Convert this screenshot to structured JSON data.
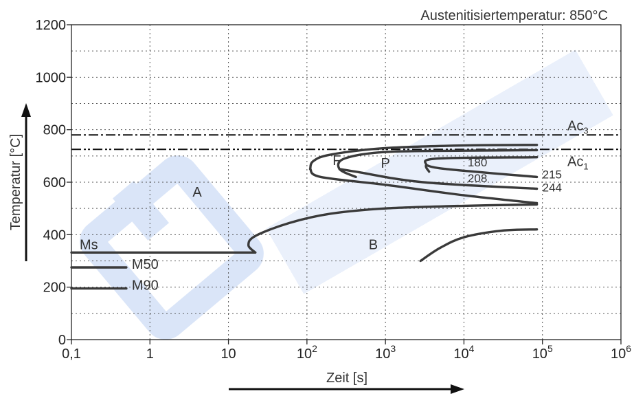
{
  "chart_data": {
    "type": "line",
    "title": "Austenitisiertemperatur: 850°C",
    "xlabel": "Zeit [s]",
    "ylabel": "Temperatur [°C]",
    "xscale": "log",
    "xlim": [
      0.1,
      1000000
    ],
    "ylim": [
      0,
      1200
    ],
    "grid": true,
    "x_ticks": [
      {
        "value": 0.1,
        "label": "0,1"
      },
      {
        "value": 1,
        "label": "1"
      },
      {
        "value": 10,
        "label": "10"
      },
      {
        "value": 100,
        "label": "10",
        "exp": "2"
      },
      {
        "value": 1000,
        "label": "10",
        "exp": "3"
      },
      {
        "value": 10000,
        "label": "10",
        "exp": "4"
      },
      {
        "value": 100000,
        "label": "10",
        "exp": "5"
      },
      {
        "value": 1000000,
        "label": "10",
        "exp": "6"
      }
    ],
    "y_ticks": [
      {
        "value": 0,
        "label": "0"
      },
      {
        "value": 200,
        "label": "200"
      },
      {
        "value": 400,
        "label": "400"
      },
      {
        "value": 600,
        "label": "600"
      },
      {
        "value": 800,
        "label": "800"
      },
      {
        "value": 1000,
        "label": "1000"
      },
      {
        "value": 1200,
        "label": "1200"
      }
    ],
    "reference_lines": [
      {
        "name": "Ac",
        "sub": "3",
        "y": 780,
        "style": "dash-dot"
      },
      {
        "name": "Ac",
        "sub": "1",
        "y": 725,
        "style": "dash-dot-dot"
      }
    ],
    "series": [
      {
        "name": "Ms",
        "points": [
          [
            0.1,
            332
          ],
          [
            22,
            332
          ]
        ]
      },
      {
        "name": "M50",
        "points": [
          [
            0.1,
            275
          ],
          [
            0.5,
            275
          ]
        ]
      },
      {
        "name": "M90",
        "points": [
          [
            0.1,
            195
          ],
          [
            0.5,
            195
          ]
        ]
      },
      {
        "name": "",
        "points": [
          [
            22,
            332
          ],
          [
            18,
            360
          ],
          [
            22,
            395
          ],
          [
            60,
            445
          ],
          [
            200,
            480
          ],
          [
            1000,
            500
          ],
          [
            10000,
            510
          ],
          [
            85000,
            515
          ]
        ]
      },
      {
        "name": "",
        "points": [
          [
            110,
            650
          ],
          [
            120,
            680
          ],
          [
            200,
            705
          ],
          [
            1000,
            730
          ],
          [
            10000,
            740
          ],
          [
            85000,
            742
          ]
        ]
      },
      {
        "name": "",
        "points": [
          [
            110,
            650
          ],
          [
            150,
            620
          ],
          [
            1000,
            590
          ],
          [
            10000,
            550
          ],
          [
            85000,
            520
          ]
        ]
      },
      {
        "name": "",
        "points": [
          [
            420,
            620
          ],
          [
            260,
            650
          ],
          [
            300,
            690
          ],
          [
            1000,
            715
          ],
          [
            10000,
            720
          ],
          [
            85000,
            722
          ]
        ]
      },
      {
        "name": "",
        "points": [
          [
            260,
            650
          ],
          [
            420,
            640
          ],
          [
            3000,
            600
          ],
          [
            85000,
            575
          ]
        ]
      },
      {
        "name": "",
        "points": [
          [
            3600,
            640
          ],
          [
            3300,
            665
          ],
          [
            4500,
            690
          ],
          [
            85000,
            695
          ]
        ]
      },
      {
        "name": "",
        "points": [
          [
            3300,
            665
          ],
          [
            6000,
            650
          ],
          [
            85000,
            620
          ]
        ]
      },
      {
        "name": "",
        "points": [
          [
            2800,
            300
          ],
          [
            5000,
            350
          ],
          [
            10000,
            390
          ],
          [
            30000,
            415
          ],
          [
            85000,
            420
          ]
        ]
      }
    ],
    "region_labels": [
      {
        "text": "A",
        "x": 4,
        "y": 545
      },
      {
        "text": "F",
        "x": 240,
        "y": 665
      },
      {
        "text": "P",
        "x": 1000,
        "y": 655
      },
      {
        "text": "B",
        "x": 700,
        "y": 345
      }
    ],
    "curve_labels": [
      {
        "text": "180",
        "x": 25000,
        "y": 660
      },
      {
        "text": "215",
        "x": 85000,
        "y": 615
      },
      {
        "text": "208",
        "x": 25000,
        "y": 600
      },
      {
        "text": "244",
        "x": 85000,
        "y": 565
      },
      {
        "text": "Ms",
        "x": 0.1,
        "y": 345
      },
      {
        "text": "M50",
        "x": 0.5,
        "y": 270
      },
      {
        "text": "M90",
        "x": 0.5,
        "y": 190
      }
    ]
  }
}
